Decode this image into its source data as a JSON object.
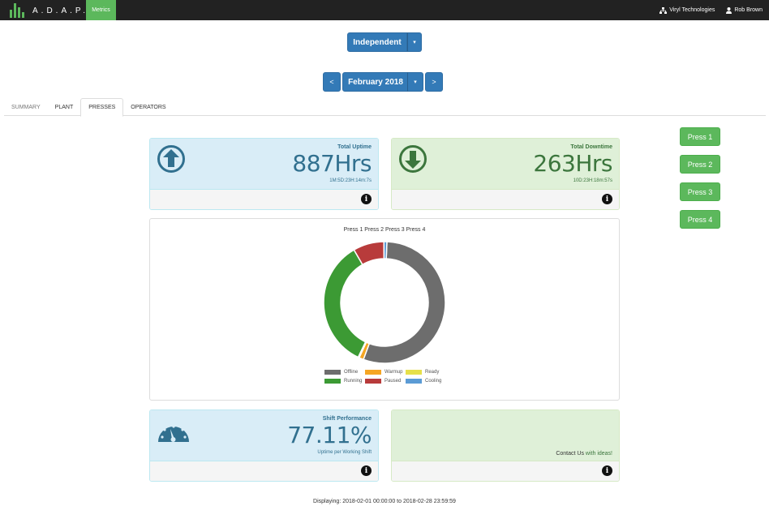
{
  "navbar": {
    "brand": "A.D.A.P.T.",
    "metrics_label": "Metrics",
    "company": "Viryl Technologies",
    "user": "Rob Brown"
  },
  "controls": {
    "mode_label": "Independent",
    "month_label": "February 2018",
    "prev": "<",
    "next": ">"
  },
  "tabs": [
    {
      "label": "SUMMARY",
      "active": false
    },
    {
      "label": "PLANT",
      "active": false
    },
    {
      "label": "PRESSES",
      "active": true
    },
    {
      "label": "OPERATORS",
      "active": false
    }
  ],
  "press_buttons": [
    "Press 1",
    "Press 2",
    "Press 3",
    "Press 4"
  ],
  "uptime": {
    "title": "Total Uptime",
    "value": "887Hrs",
    "detail": "1M:5D:23H:14m:7s"
  },
  "downtime": {
    "title": "Total Downtime",
    "value": "263Hrs",
    "detail": "10D:23H:18m:57s"
  },
  "shift": {
    "title": "Shift Performance",
    "value": "77.11%",
    "detail": "Uptime per Working Shift"
  },
  "contact": {
    "text": "Contact Us",
    "link": "with ideas!"
  },
  "chart_data": {
    "type": "pie",
    "title": "Press 1 Press 2 Press 3 Press 4",
    "categories": [
      "Offline",
      "Warmup",
      "Ready",
      "Running",
      "Paused",
      "Cooling"
    ],
    "values": [
      55.0,
      1.2,
      0.3,
      34.5,
      8.2,
      0.8
    ],
    "colors": [
      "#6d6d6d",
      "#f5a623",
      "#e6e04a",
      "#3c9a34",
      "#b83b3b",
      "#5b9bd5"
    ],
    "legend_position": "bottom"
  },
  "footer": "Displaying: 2018-02-01 00:00:00 to 2018-02-28 23:59:59"
}
